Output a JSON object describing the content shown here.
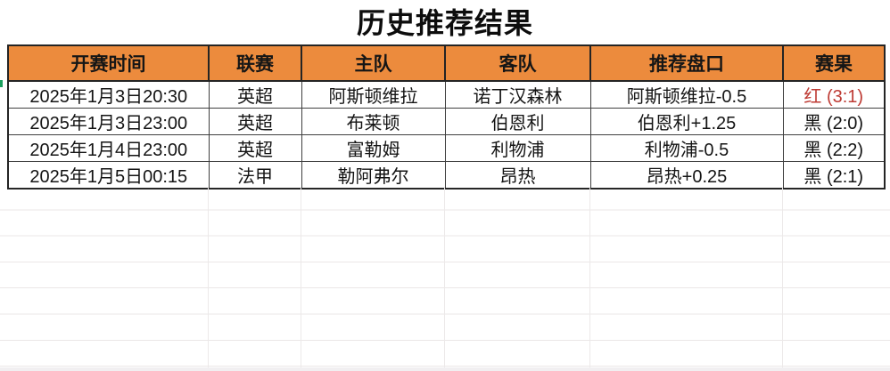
{
  "title": "历史推荐结果",
  "colors": {
    "header_bg": "#EC8B3D",
    "result_red": "#BE3B34",
    "result_black": "#131313"
  },
  "table": {
    "column_keys": [
      "time",
      "league",
      "home",
      "away",
      "handicap",
      "result"
    ],
    "headers": [
      "开赛时间",
      "联赛",
      "主队",
      "客队",
      "推荐盘口",
      "赛果"
    ],
    "rows": [
      {
        "time": "2025年1月3日20:30",
        "league": "英超",
        "home": "阿斯顿维拉",
        "away": "诺丁汉森林",
        "handicap": "阿斯顿维拉-0.5",
        "result": "红 (3:1)",
        "result_color": "red"
      },
      {
        "time": "2025年1月3日23:00",
        "league": "英超",
        "home": "布莱顿",
        "away": "伯恩利",
        "handicap": "伯恩利+1.25",
        "result": "黑 (2:0)",
        "result_color": "black"
      },
      {
        "time": "2025年1月4日23:00",
        "league": "英超",
        "home": "富勒姆",
        "away": "利物浦",
        "handicap": "利物浦-0.5",
        "result": "黑 (2:2)",
        "result_color": "black"
      },
      {
        "time": "2025年1月5日00:15",
        "league": "法甲",
        "home": "勒阿弗尔",
        "away": "昂热",
        "handicap": "昂热+0.25",
        "result": "黑 (2:1)",
        "result_color": "black"
      }
    ]
  }
}
